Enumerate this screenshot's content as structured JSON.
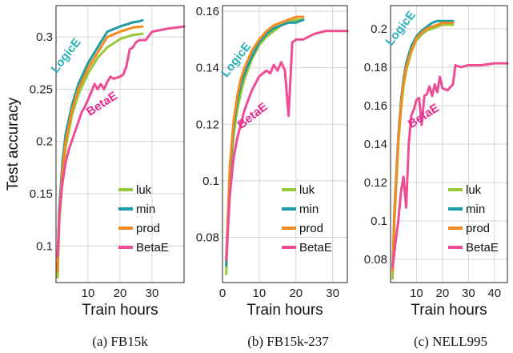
{
  "chart_data": [
    {
      "type": "line",
      "caption": "(a) FB15k",
      "xlabel": "Train hours",
      "ylabel": "Test accuracy",
      "xlim": [
        0,
        40
      ],
      "ylim": [
        0.065,
        0.33
      ],
      "xticks": [
        10,
        20,
        30
      ],
      "yticks": [
        0.1,
        0.15,
        0.2,
        0.25,
        0.3
      ],
      "ytick_labels": [
        "0.1",
        "0.15",
        "0.2",
        "0.25",
        "0.3"
      ],
      "grid": true,
      "legend_position": "lower-right",
      "annotations": [
        {
          "text": "LogicE",
          "x": 4.0,
          "y": 0.28,
          "color": "#2ab0b9",
          "rotate": -52
        },
        {
          "text": "BetaE",
          "x": 15.0,
          "y": 0.233,
          "color": "#e8288f",
          "rotate": -33
        }
      ],
      "series": [
        {
          "name": "luk",
          "color": "#97c93d",
          "x": [
            0.5,
            1,
            2,
            3,
            5,
            7,
            10,
            13,
            16,
            20,
            24,
            27
          ],
          "y": [
            0.07,
            0.12,
            0.165,
            0.195,
            0.225,
            0.245,
            0.265,
            0.28,
            0.29,
            0.298,
            0.302,
            0.303
          ]
        },
        {
          "name": "min",
          "color": "#1f9ba6",
          "x": [
            0.5,
            1,
            2,
            3,
            5,
            7,
            10,
            13,
            16,
            20,
            24,
            26,
            27
          ],
          "y": [
            0.08,
            0.135,
            0.18,
            0.207,
            0.235,
            0.255,
            0.275,
            0.29,
            0.305,
            0.31,
            0.314,
            0.315,
            0.316
          ]
        },
        {
          "name": "prod",
          "color": "#f58b1f",
          "x": [
            0.5,
            1,
            2,
            3,
            5,
            7,
            10,
            13,
            16,
            20,
            24,
            27
          ],
          "y": [
            0.075,
            0.128,
            0.172,
            0.2,
            0.23,
            0.25,
            0.27,
            0.285,
            0.3,
            0.305,
            0.309,
            0.31
          ]
        },
        {
          "name": "BetaE",
          "color": "#ee4d96",
          "x": [
            0.5,
            1,
            2,
            3,
            4,
            6,
            8,
            9,
            10,
            11,
            12,
            13,
            14,
            15,
            16,
            17,
            18,
            19,
            20,
            21,
            22,
            23,
            24,
            25,
            26,
            28,
            30,
            35,
            40
          ],
          "y": [
            0.09,
            0.13,
            0.16,
            0.18,
            0.192,
            0.21,
            0.228,
            0.233,
            0.24,
            0.247,
            0.255,
            0.25,
            0.255,
            0.25,
            0.257,
            0.262,
            0.26,
            0.261,
            0.262,
            0.264,
            0.272,
            0.288,
            0.29,
            0.295,
            0.297,
            0.297,
            0.305,
            0.308,
            0.31
          ]
        }
      ]
    },
    {
      "type": "line",
      "caption": "(b) FB15k-237",
      "xlabel": "Train hours",
      "ylabel": "",
      "xlim": [
        0,
        34
      ],
      "ylim": [
        0.064,
        0.162
      ],
      "xticks": [
        0,
        10,
        20,
        30
      ],
      "yticks": [
        0.08,
        0.1,
        0.12,
        0.14,
        0.16
      ],
      "ytick_labels": [
        "0.08",
        "0.1",
        "0.12",
        "0.14",
        "0.16"
      ],
      "grid": true,
      "legend_position": "lower-right",
      "annotations": [
        {
          "text": "LogicE",
          "x": 4.5,
          "y": 0.142,
          "color": "#2ab0b9",
          "rotate": -52
        },
        {
          "text": "BetaE",
          "x": 8.8,
          "y": 0.122,
          "color": "#e8288f",
          "rotate": -38
        }
      ],
      "series": [
        {
          "name": "luk",
          "color": "#97c93d",
          "x": [
            1,
            2,
            3,
            4,
            5,
            6,
            8,
            10,
            12,
            14,
            16,
            18,
            20,
            22
          ],
          "y": [
            0.067,
            0.1,
            0.116,
            0.125,
            0.131,
            0.136,
            0.143,
            0.148,
            0.151,
            0.153,
            0.155,
            0.156,
            0.157,
            0.157
          ]
        },
        {
          "name": "min",
          "color": "#1f9ba6",
          "x": [
            1,
            2,
            3,
            4,
            5,
            6,
            8,
            10,
            12,
            14,
            16,
            18,
            20,
            22
          ],
          "y": [
            0.07,
            0.103,
            0.119,
            0.128,
            0.134,
            0.138,
            0.144,
            0.149,
            0.152,
            0.154,
            0.155,
            0.156,
            0.156,
            0.157
          ]
        },
        {
          "name": "prod",
          "color": "#f58b1f",
          "x": [
            1,
            2,
            3,
            4,
            5,
            6,
            8,
            10,
            12,
            14,
            16,
            18,
            20,
            22
          ],
          "y": [
            0.072,
            0.105,
            0.121,
            0.13,
            0.136,
            0.14,
            0.146,
            0.15,
            0.153,
            0.155,
            0.156,
            0.157,
            0.158,
            0.158
          ]
        },
        {
          "name": "BetaE",
          "color": "#ee4d96",
          "x": [
            1,
            2,
            3,
            4,
            5,
            6,
            8,
            10,
            11,
            12,
            13,
            14,
            15,
            16,
            17,
            18,
            19,
            20,
            22,
            25,
            28,
            30,
            34
          ],
          "y": [
            0.072,
            0.095,
            0.108,
            0.115,
            0.12,
            0.125,
            0.132,
            0.137,
            0.138,
            0.139,
            0.138,
            0.141,
            0.139,
            0.142,
            0.139,
            0.123,
            0.149,
            0.15,
            0.15,
            0.152,
            0.153,
            0.153,
            0.153
          ]
        }
      ]
    },
    {
      "type": "line",
      "caption": "(c) NELL995",
      "xlabel": "Train hours",
      "ylabel": "",
      "xlim": [
        0,
        45
      ],
      "ylim": [
        0.068,
        0.212
      ],
      "xticks": [
        10,
        20,
        30,
        40
      ],
      "yticks": [
        0.08,
        0.1,
        0.12,
        0.14,
        0.16,
        0.18,
        0.2
      ],
      "ytick_labels": [
        "0.08",
        "0.1",
        "0.12",
        "0.14",
        "0.16",
        "0.18",
        "0.2"
      ],
      "grid": true,
      "legend_position": "lower-right",
      "annotations": [
        {
          "text": "LogicE",
          "x": 5.0,
          "y": 0.199,
          "color": "#2ab0b9",
          "rotate": -52
        },
        {
          "text": "BetaE",
          "x": 13.5,
          "y": 0.153,
          "color": "#e8288f",
          "rotate": -33
        }
      ],
      "series": [
        {
          "name": "luk",
          "color": "#97c93d",
          "x": [
            0.8,
            1.5,
            3,
            4,
            5,
            6,
            8,
            10,
            12,
            14,
            16,
            18,
            20,
            22,
            24
          ],
          "y": [
            0.07,
            0.1,
            0.14,
            0.158,
            0.17,
            0.178,
            0.188,
            0.194,
            0.197,
            0.199,
            0.2,
            0.201,
            0.202,
            0.202,
            0.202
          ]
        },
        {
          "name": "min",
          "color": "#1f9ba6",
          "x": [
            0.8,
            1.5,
            3,
            4,
            5,
            6,
            8,
            10,
            12,
            14,
            16,
            18,
            20,
            22,
            24
          ],
          "y": [
            0.076,
            0.106,
            0.144,
            0.162,
            0.174,
            0.182,
            0.191,
            0.196,
            0.199,
            0.201,
            0.203,
            0.204,
            0.204,
            0.204,
            0.204
          ]
        },
        {
          "name": "prod",
          "color": "#f58b1f",
          "x": [
            0.8,
            1.5,
            3,
            4,
            5,
            6,
            8,
            10,
            12,
            14,
            16,
            18,
            20,
            22,
            24
          ],
          "y": [
            0.074,
            0.104,
            0.142,
            0.16,
            0.172,
            0.18,
            0.189,
            0.195,
            0.198,
            0.2,
            0.201,
            0.202,
            0.203,
            0.203,
            0.203
          ]
        },
        {
          "name": "BetaE",
          "color": "#ee4d96",
          "x": [
            0.8,
            2,
            3,
            4,
            5,
            6,
            7,
            8,
            9,
            10,
            11,
            12,
            13,
            14,
            15,
            16,
            17,
            18,
            19,
            20,
            22,
            24,
            25,
            27,
            30,
            35,
            40,
            45
          ],
          "y": [
            0.076,
            0.09,
            0.1,
            0.115,
            0.123,
            0.107,
            0.14,
            0.155,
            0.158,
            0.163,
            0.164,
            0.15,
            0.165,
            0.166,
            0.17,
            0.165,
            0.171,
            0.167,
            0.175,
            0.169,
            0.168,
            0.171,
            0.181,
            0.18,
            0.181,
            0.181,
            0.182,
            0.182
          ]
        }
      ]
    }
  ]
}
